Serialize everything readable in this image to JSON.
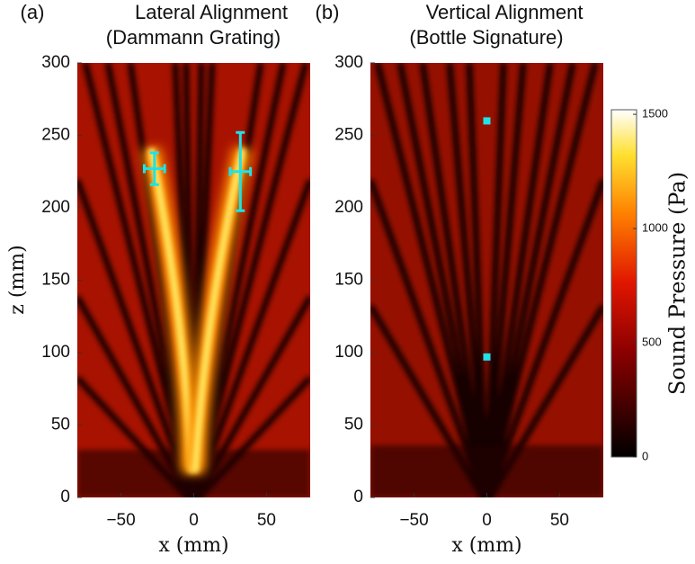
{
  "chart_data": [
    {
      "type": "heatmap",
      "panel_label": "(a)",
      "title": [
        "Lateral Alignment",
        "(Dammann Grating)"
      ],
      "x_label": "x (mm)",
      "y_label": "z (mm)",
      "xlim": [
        -80,
        80
      ],
      "ylim": [
        0,
        300
      ],
      "xticks": [
        {
          "value": -50,
          "label": "−50"
        },
        0,
        50
      ],
      "yticks": [
        0,
        50,
        100,
        150,
        200,
        250,
        300
      ],
      "points": {
        "marker": "errorbar",
        "color": "#1ee3e8",
        "x": [
          -27,
          32
        ],
        "y": [
          227,
          225
        ],
        "xerr": [
          7,
          7
        ],
        "yerr": [
          11,
          27
        ]
      }
    },
    {
      "type": "heatmap",
      "panel_label": "(b)",
      "title": [
        "Vertical Alignment",
        "(Bottle Signature)"
      ],
      "x_label": "x (mm)",
      "xlim": [
        -80,
        80
      ],
      "ylim": [
        0,
        300
      ],
      "xticks": [
        {
          "value": -50,
          "label": "−50"
        },
        0,
        50
      ],
      "yticks": [
        0,
        50,
        100,
        150,
        200,
        250,
        300
      ],
      "points": {
        "marker": "square",
        "color": "#1ee3e8",
        "x": [
          0,
          0
        ],
        "y": [
          260,
          97
        ]
      },
      "colorbar": {
        "label": "Sound Pressure (Pa)",
        "lim": [
          0,
          1520
        ],
        "ticks": [
          0,
          500,
          1000,
          1500
        ]
      }
    }
  ]
}
